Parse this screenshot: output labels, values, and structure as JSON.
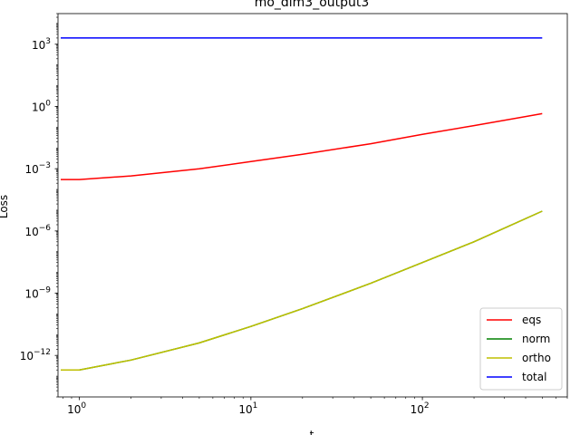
{
  "chart_data": {
    "type": "line",
    "title": "mo_dim3_output3",
    "xlabel": "t",
    "ylabel": "Loss",
    "xscale": "log",
    "yscale": "log",
    "xlim": [
      0.75,
      700
    ],
    "ylim": [
      1e-14,
      30000.0
    ],
    "x_ticks": [
      {
        "value": 1,
        "base": "10",
        "exp": "0"
      },
      {
        "value": 10,
        "base": "10",
        "exp": "1"
      },
      {
        "value": 100,
        "base": "10",
        "exp": "2"
      }
    ],
    "y_ticks": [
      {
        "value": 1e-12,
        "base": "10",
        "exp": "−12"
      },
      {
        "value": 1e-09,
        "base": "10",
        "exp": "−9"
      },
      {
        "value": 1e-06,
        "base": "10",
        "exp": "−6"
      },
      {
        "value": 0.001,
        "base": "10",
        "exp": "−3"
      },
      {
        "value": 1,
        "base": "10",
        "exp": "0"
      },
      {
        "value": 1000,
        "base": "10",
        "exp": "3"
      }
    ],
    "legend_position": "lower-right",
    "grid": false,
    "series": [
      {
        "name": "eqs",
        "color": "#ff0000",
        "x": [
          0,
          1,
          2,
          5,
          10,
          20,
          50,
          100,
          200,
          500
        ],
        "y": [
          0.0003,
          0.0003,
          0.00045,
          0.001,
          0.0022,
          0.005,
          0.016,
          0.045,
          0.12,
          0.45
        ]
      },
      {
        "name": "norm",
        "color": "#008000",
        "x": [
          0,
          1,
          2,
          5,
          10,
          20,
          50,
          100,
          200,
          500
        ],
        "y": [
          2e-13,
          2e-13,
          6e-13,
          4e-12,
          2.5e-11,
          1.8e-10,
          3e-09,
          3e-08,
          3e-07,
          9e-06
        ]
      },
      {
        "name": "ortho",
        "color": "#bfbf00",
        "x": [
          0,
          1,
          2,
          5,
          10,
          20,
          50,
          100,
          200,
          500
        ],
        "y": [
          2e-13,
          2e-13,
          6e-13,
          4e-12,
          2.5e-11,
          1.8e-10,
          3e-09,
          3e-08,
          3e-07,
          9e-06
        ]
      },
      {
        "name": "total",
        "color": "#0000ff",
        "x": [
          0,
          1,
          2,
          5,
          10,
          20,
          50,
          100,
          200,
          500
        ],
        "y": [
          2000,
          2000,
          2000,
          2000,
          2000,
          2000,
          2000,
          2000,
          2000,
          2000
        ]
      }
    ]
  }
}
